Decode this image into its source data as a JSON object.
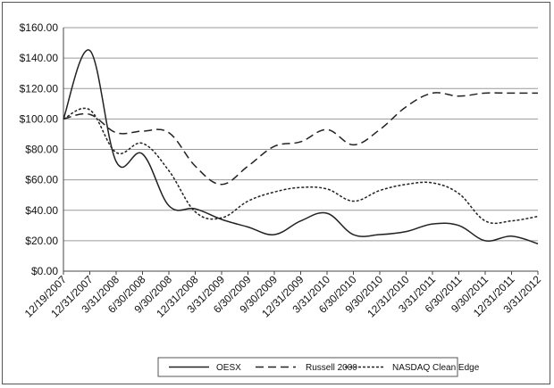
{
  "chart_data": {
    "type": "line",
    "title": "",
    "xlabel": "",
    "ylabel": "",
    "ylim": [
      0,
      160
    ],
    "yticks": [
      0,
      20,
      40,
      60,
      80,
      100,
      120,
      140,
      160
    ],
    "ytick_labels": [
      "$0.00",
      "$20.00",
      "$40.00",
      "$60.00",
      "$80.00",
      "$100.00",
      "$120.00",
      "$140.00",
      "$160.00"
    ],
    "categories": [
      "12/19/2007",
      "12/31/2007",
      "3/31/2008",
      "6/30/2008",
      "9/30/2008",
      "12/31/2008",
      "3/31/2009",
      "6/30/2009",
      "9/30/2009",
      "12/31/2009",
      "3/31/2010",
      "6/30/2010",
      "9/30/2010",
      "12/31/2010",
      "3/31/2011",
      "6/30/2011",
      "9/30/2011",
      "12/31/2011",
      "3/31/2012"
    ],
    "grid": "horizontal",
    "legend_position": "bottom",
    "series": [
      {
        "name": "OESX",
        "style": "solid",
        "values": [
          100,
          145,
          72,
          77,
          43,
          41,
          34,
          29,
          24,
          33,
          38,
          24,
          24,
          26,
          31,
          30,
          20,
          23,
          18
        ]
      },
      {
        "name": "Russell 2000",
        "style": "dashed",
        "values": [
          100,
          103,
          91,
          92,
          91,
          69,
          57,
          69,
          82,
          85,
          93,
          83,
          93,
          108,
          117,
          115,
          117,
          117,
          117
        ]
      },
      {
        "name": "NASDAQ Clean Edge",
        "style": "dotted",
        "values": [
          100,
          106,
          78,
          84,
          66,
          39,
          35,
          46,
          52,
          55,
          54,
          46,
          53,
          57,
          58,
          51,
          33,
          33,
          36
        ]
      }
    ]
  }
}
